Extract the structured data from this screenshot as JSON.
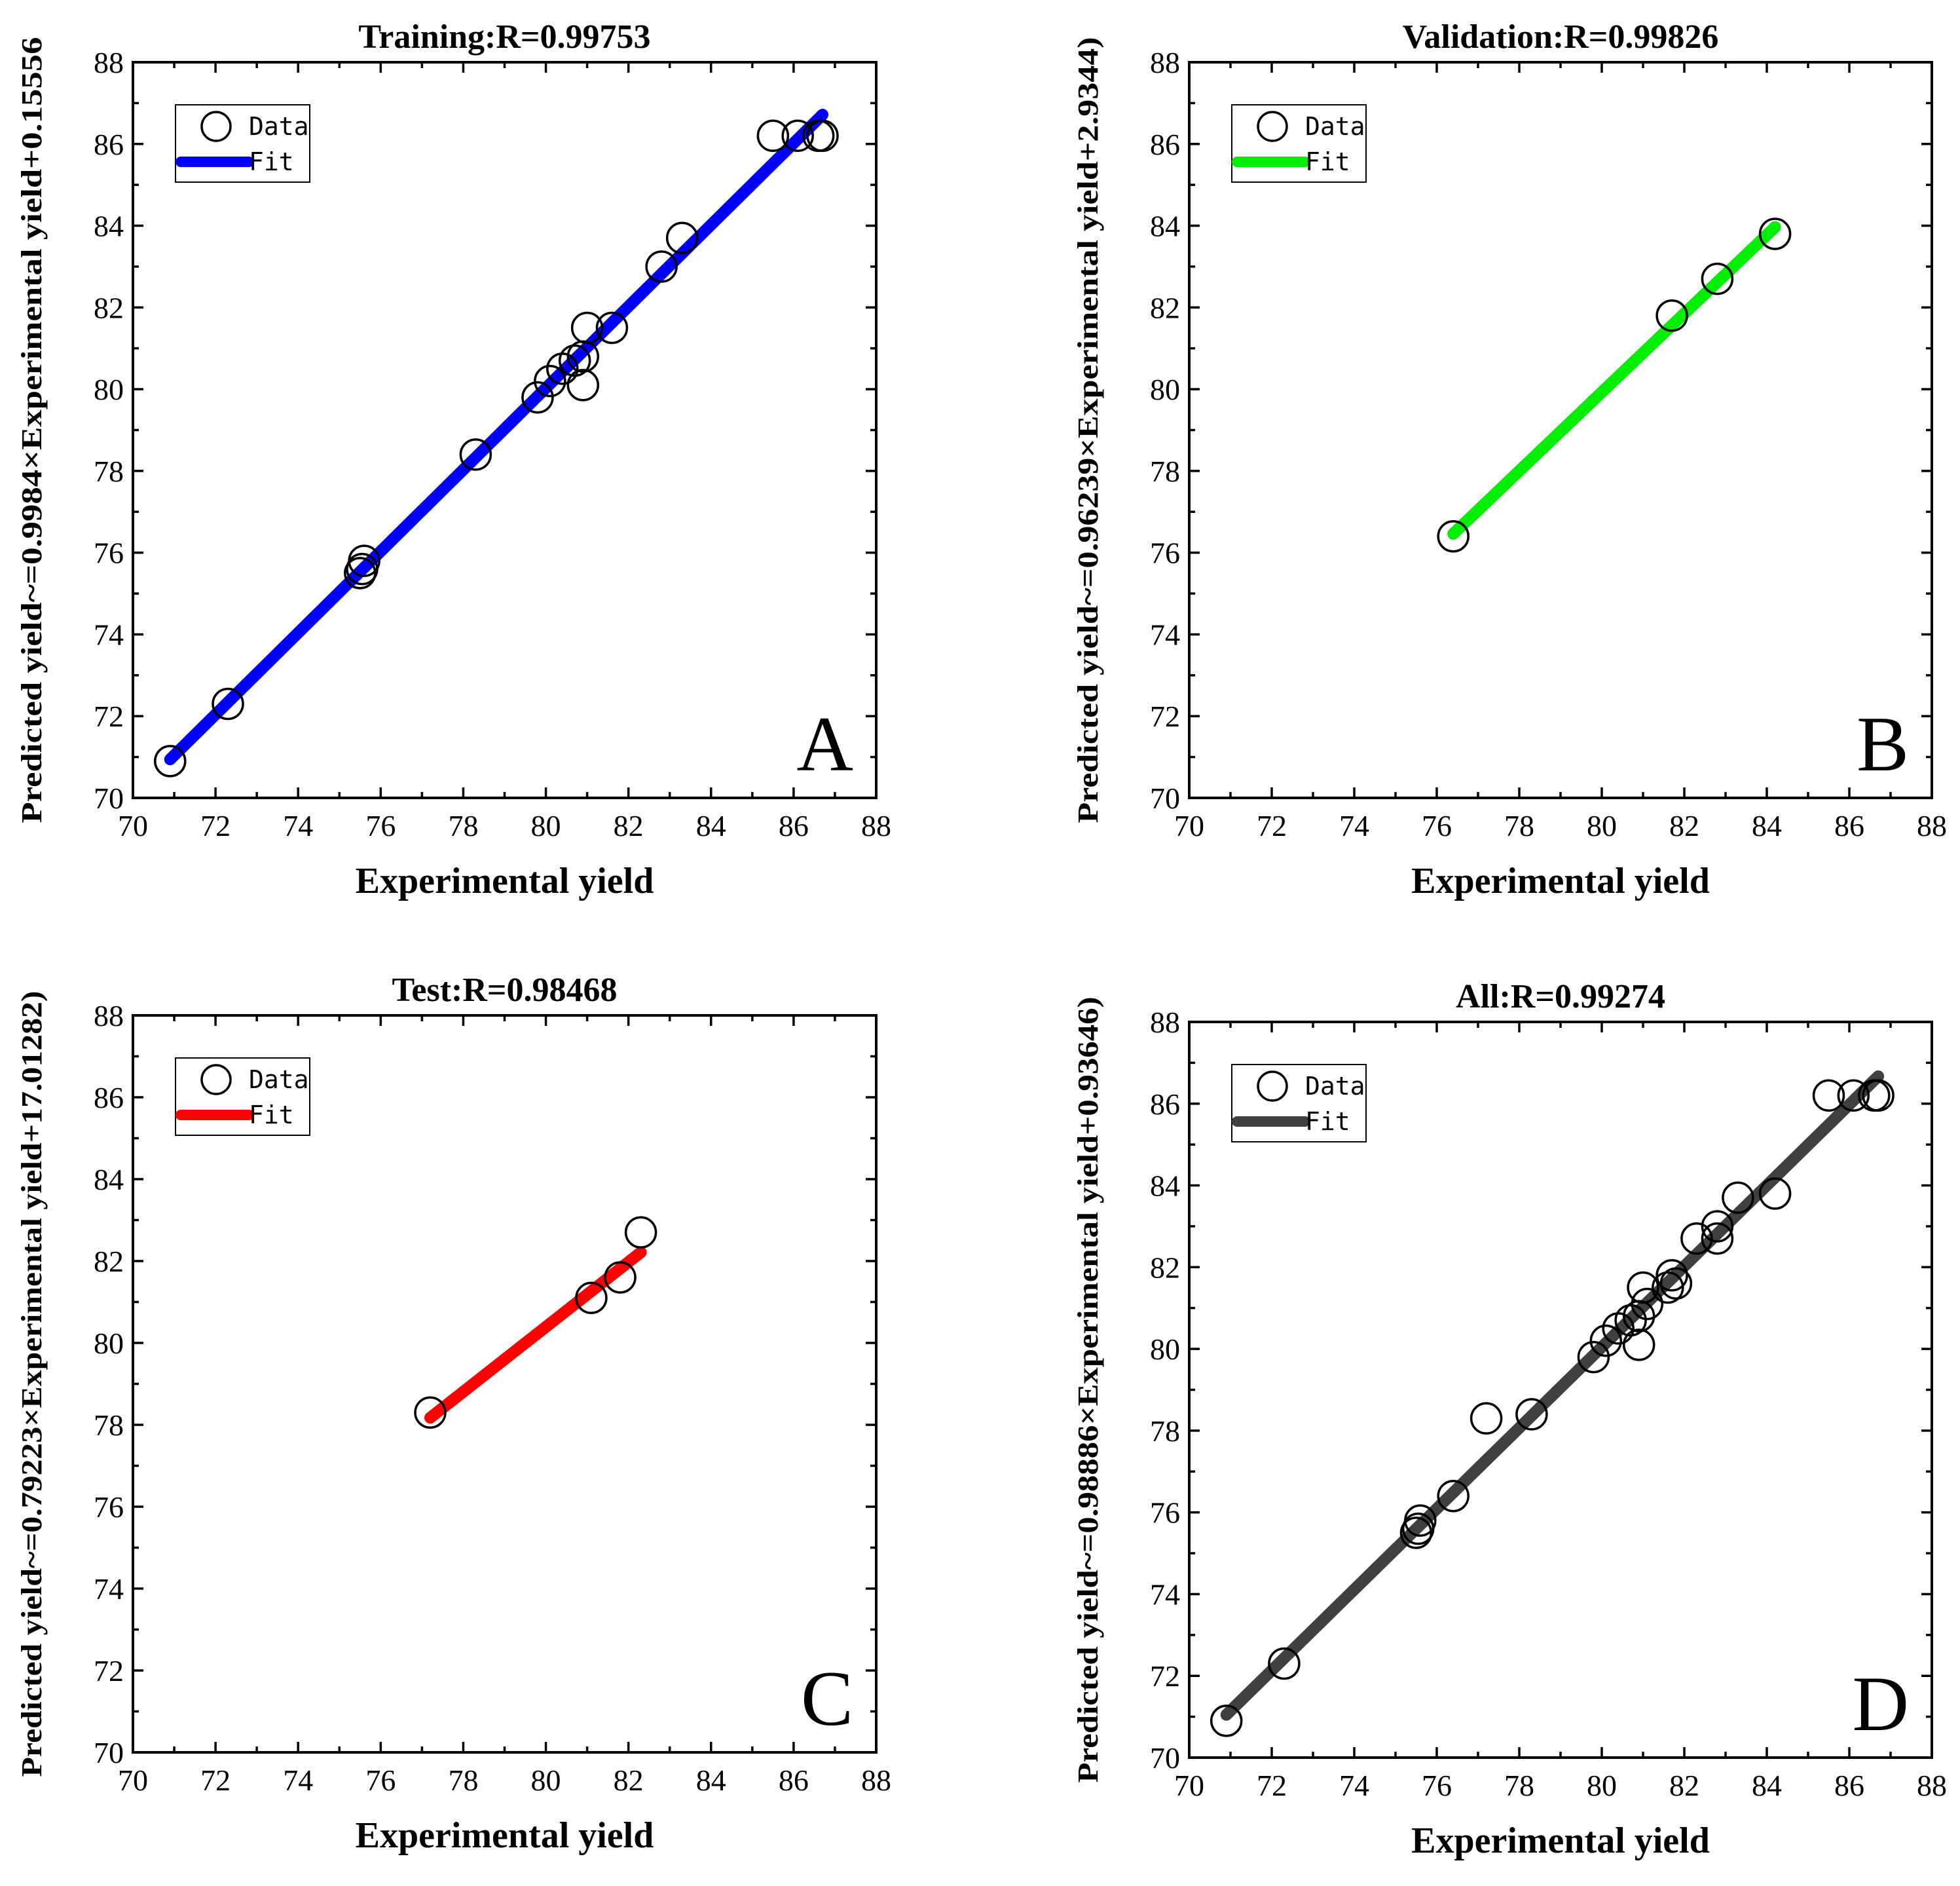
{
  "legend": {
    "data_label": "Data",
    "fit_label": "Fit"
  },
  "chart_data": [
    {
      "type": "scatter",
      "panel": "A",
      "title": "Training:R=0.99753",
      "xlabel": "Experimental yield",
      "ylabel": "Predicted yield~=0.9984×Experimental yield+0.15556",
      "xlim": [
        70,
        88
      ],
      "ylim": [
        70,
        88
      ],
      "xticks": [
        70,
        72,
        74,
        76,
        78,
        80,
        82,
        84,
        86,
        88
      ],
      "yticks": [
        70,
        72,
        74,
        76,
        78,
        80,
        82,
        84,
        86,
        88
      ],
      "fit_color": "#0000ff",
      "fit": {
        "slope": 0.9984,
        "intercept": 0.15556,
        "x_range": [
          70.9,
          86.7
        ]
      },
      "points": [
        {
          "x": 70.9,
          "y": 70.9
        },
        {
          "x": 72.3,
          "y": 72.3
        },
        {
          "x": 75.5,
          "y": 75.5
        },
        {
          "x": 75.6,
          "y": 75.8
        },
        {
          "x": 75.55,
          "y": 75.6
        },
        {
          "x": 78.3,
          "y": 78.4
        },
        {
          "x": 79.8,
          "y": 79.8
        },
        {
          "x": 80.1,
          "y": 80.2
        },
        {
          "x": 80.4,
          "y": 80.5
        },
        {
          "x": 80.7,
          "y": 80.7
        },
        {
          "x": 80.9,
          "y": 80.1
        },
        {
          "x": 80.9,
          "y": 80.8
        },
        {
          "x": 81.0,
          "y": 81.5
        },
        {
          "x": 81.6,
          "y": 81.5
        },
        {
          "x": 82.8,
          "y": 83.0
        },
        {
          "x": 83.3,
          "y": 83.7
        },
        {
          "x": 85.5,
          "y": 86.2
        },
        {
          "x": 86.1,
          "y": 86.2
        },
        {
          "x": 86.6,
          "y": 86.2
        },
        {
          "x": 86.7,
          "y": 86.2
        }
      ]
    },
    {
      "type": "scatter",
      "panel": "B",
      "title": "Validation:R=0.99826",
      "xlabel": "Experimental yield",
      "ylabel": "Predicted yield~=0.96239×Experimental yield+2.9344)",
      "xlim": [
        70,
        88
      ],
      "ylim": [
        70,
        88
      ],
      "xticks": [
        70,
        72,
        74,
        76,
        78,
        80,
        82,
        84,
        86,
        88
      ],
      "yticks": [
        70,
        72,
        74,
        76,
        78,
        80,
        82,
        84,
        86,
        88
      ],
      "fit_color": "#00ee00",
      "fit": {
        "slope": 0.96239,
        "intercept": 2.9344,
        "x_range": [
          76.4,
          84.2
        ]
      },
      "points": [
        {
          "x": 76.4,
          "y": 76.4
        },
        {
          "x": 81.7,
          "y": 81.8
        },
        {
          "x": 82.8,
          "y": 82.7
        },
        {
          "x": 84.2,
          "y": 83.8
        }
      ]
    },
    {
      "type": "scatter",
      "panel": "C",
      "title": "Test:R=0.98468",
      "xlabel": "Experimental yield",
      "ylabel": "Predicted yield~=0.79223×Experimental yield+17.01282)",
      "xlim": [
        70,
        88
      ],
      "ylim": [
        70,
        88
      ],
      "xticks": [
        70,
        72,
        74,
        76,
        78,
        80,
        82,
        84,
        86,
        88
      ],
      "yticks": [
        70,
        72,
        74,
        76,
        78,
        80,
        82,
        84,
        86,
        88
      ],
      "fit_color": "#ff0000",
      "fit": {
        "slope": 0.79223,
        "intercept": 17.01282,
        "x_range": [
          77.2,
          82.3
        ]
      },
      "points": [
        {
          "x": 77.2,
          "y": 78.3
        },
        {
          "x": 81.1,
          "y": 81.1
        },
        {
          "x": 81.8,
          "y": 81.6
        },
        {
          "x": 82.3,
          "y": 82.7
        }
      ]
    },
    {
      "type": "scatter",
      "panel": "D",
      "title": "All:R=0.99274",
      "xlabel": "Experimental yield",
      "ylabel": "Predicted yield~=0.98886×Experimental yield+0.93646)",
      "xlim": [
        70,
        88
      ],
      "ylim": [
        70,
        88
      ],
      "xticks": [
        70,
        72,
        74,
        76,
        78,
        80,
        82,
        84,
        86,
        88
      ],
      "yticks": [
        70,
        72,
        74,
        76,
        78,
        80,
        82,
        84,
        86,
        88
      ],
      "fit_color": "#404040",
      "fit": {
        "slope": 0.98886,
        "intercept": 0.93646,
        "x_range": [
          70.9,
          86.7
        ]
      },
      "points": [
        {
          "x": 70.9,
          "y": 70.9
        },
        {
          "x": 72.3,
          "y": 72.3
        },
        {
          "x": 75.5,
          "y": 75.5
        },
        {
          "x": 75.6,
          "y": 75.8
        },
        {
          "x": 75.55,
          "y": 75.6
        },
        {
          "x": 76.4,
          "y": 76.4
        },
        {
          "x": 77.2,
          "y": 78.3
        },
        {
          "x": 78.3,
          "y": 78.4
        },
        {
          "x": 79.8,
          "y": 79.8
        },
        {
          "x": 80.1,
          "y": 80.2
        },
        {
          "x": 80.4,
          "y": 80.5
        },
        {
          "x": 80.7,
          "y": 80.7
        },
        {
          "x": 80.9,
          "y": 80.1
        },
        {
          "x": 80.9,
          "y": 80.8
        },
        {
          "x": 81.0,
          "y": 81.5
        },
        {
          "x": 81.1,
          "y": 81.1
        },
        {
          "x": 81.6,
          "y": 81.5
        },
        {
          "x": 81.7,
          "y": 81.8
        },
        {
          "x": 81.8,
          "y": 81.6
        },
        {
          "x": 82.3,
          "y": 82.7
        },
        {
          "x": 82.8,
          "y": 83.0
        },
        {
          "x": 82.8,
          "y": 82.7
        },
        {
          "x": 83.3,
          "y": 83.7
        },
        {
          "x": 84.2,
          "y": 83.8
        },
        {
          "x": 85.5,
          "y": 86.2
        },
        {
          "x": 86.1,
          "y": 86.2
        },
        {
          "x": 86.6,
          "y": 86.2
        },
        {
          "x": 86.7,
          "y": 86.2
        }
      ]
    }
  ]
}
